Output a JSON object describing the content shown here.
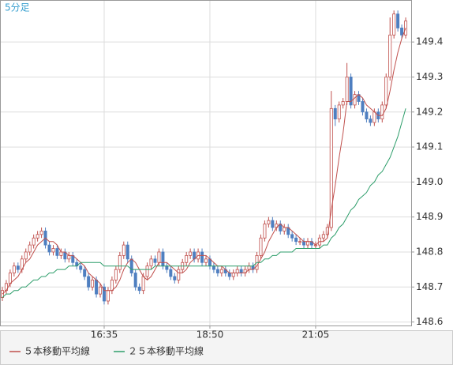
{
  "chart_data": {
    "type": "candlestick",
    "title": "5分足",
    "xlim": [
      -0.6,
      104.4
    ],
    "xticks": [
      {
        "value": 26,
        "label": "16:35"
      },
      {
        "value": 53,
        "label": "18:50"
      },
      {
        "value": 80,
        "label": "21:05"
      }
    ],
    "ylim": [
      148.59,
      149.52
    ],
    "yticks": [
      148.6,
      148.7,
      148.8,
      148.9,
      {
        "value": 149,
        "label": "149.0"
      },
      149.1,
      149.2,
      149.3,
      149.4
    ],
    "grid": true,
    "up_color": "#c0504d",
    "down_color": "#4f7fc0",
    "open": [
      148.67,
      148.69,
      148.71,
      148.74,
      148.76,
      148.75,
      148.78,
      148.8,
      148.82,
      148.84,
      148.85,
      148.86,
      148.82,
      148.8,
      148.81,
      148.79,
      148.8,
      148.78,
      148.79,
      148.77,
      148.76,
      148.75,
      148.73,
      148.7,
      148.72,
      148.68,
      148.7,
      148.66,
      148.69,
      148.72,
      148.75,
      148.79,
      148.82,
      148.78,
      148.74,
      148.7,
      148.69,
      148.73,
      148.76,
      148.78,
      148.77,
      148.8,
      148.76,
      148.75,
      148.73,
      148.72,
      148.75,
      148.77,
      148.79,
      148.8,
      148.78,
      148.8,
      148.77,
      148.78,
      148.76,
      148.75,
      148.74,
      148.75,
      148.74,
      148.73,
      148.74,
      148.75,
      148.74,
      148.75,
      148.76,
      148.75,
      148.79,
      148.84,
      148.88,
      148.89,
      148.87,
      148.88,
      148.86,
      148.87,
      148.85,
      148.84,
      148.83,
      148.83,
      148.82,
      148.83,
      148.82,
      148.82,
      148.84,
      148.85,
      148.87,
      149.21,
      149.18,
      149.22,
      149.23,
      149.3,
      149.22,
      149.25,
      149.23,
      149.2,
      149.18,
      149.17,
      149.2,
      149.18,
      149.22,
      149.3,
      149.42,
      149.48,
      149.44,
      149.42
    ],
    "high": [
      148.7,
      148.72,
      148.75,
      148.77,
      148.77,
      148.79,
      148.81,
      148.83,
      148.85,
      148.86,
      148.87,
      148.87,
      148.83,
      148.82,
      148.82,
      148.81,
      148.81,
      148.8,
      148.8,
      148.78,
      148.77,
      148.76,
      148.74,
      148.73,
      148.73,
      148.71,
      148.71,
      148.7,
      148.73,
      148.76,
      148.8,
      148.83,
      148.83,
      148.79,
      148.75,
      148.71,
      148.74,
      148.77,
      148.79,
      148.79,
      148.81,
      148.81,
      148.77,
      148.76,
      148.74,
      148.76,
      148.78,
      148.8,
      148.81,
      148.81,
      148.81,
      148.81,
      148.79,
      148.79,
      148.77,
      148.76,
      148.76,
      148.76,
      148.75,
      148.75,
      148.76,
      148.76,
      148.76,
      148.77,
      148.77,
      148.8,
      148.85,
      148.89,
      148.9,
      148.9,
      148.89,
      148.89,
      148.88,
      148.88,
      148.86,
      148.85,
      148.84,
      148.84,
      148.84,
      148.84,
      148.83,
      148.85,
      148.86,
      148.88,
      149.26,
      149.22,
      149.23,
      149.24,
      149.34,
      149.31,
      149.26,
      149.26,
      149.24,
      149.21,
      149.19,
      149.21,
      149.21,
      149.23,
      149.31,
      149.47,
      149.49,
      149.49,
      149.45,
      149.47
    ],
    "low": [
      148.66,
      148.68,
      148.7,
      148.73,
      148.74,
      148.74,
      148.77,
      148.79,
      148.81,
      148.83,
      148.84,
      148.81,
      148.79,
      148.79,
      148.78,
      148.78,
      148.77,
      148.77,
      148.76,
      148.75,
      148.74,
      148.72,
      148.69,
      148.69,
      148.67,
      148.67,
      148.65,
      148.65,
      148.68,
      148.71,
      148.74,
      148.78,
      148.77,
      148.73,
      148.69,
      148.68,
      148.68,
      148.72,
      148.75,
      148.76,
      148.76,
      148.75,
      148.74,
      148.72,
      148.71,
      148.71,
      148.74,
      148.76,
      148.78,
      148.77,
      148.77,
      148.76,
      148.76,
      148.75,
      148.74,
      148.73,
      148.73,
      148.73,
      148.72,
      148.72,
      148.73,
      148.73,
      148.73,
      148.74,
      148.74,
      148.74,
      148.78,
      148.83,
      148.87,
      148.86,
      148.86,
      148.85,
      148.85,
      148.84,
      148.83,
      148.82,
      148.82,
      148.81,
      148.81,
      148.81,
      148.81,
      148.81,
      148.83,
      148.84,
      148.86,
      149.16,
      149.17,
      149.21,
      149.22,
      149.21,
      149.21,
      149.22,
      149.19,
      149.17,
      149.16,
      149.16,
      149.17,
      149.17,
      149.21,
      149.29,
      149.41,
      149.43,
      149.41,
      149.41
    ],
    "close": [
      148.69,
      148.71,
      148.74,
      148.76,
      148.75,
      148.78,
      148.8,
      148.82,
      148.84,
      148.85,
      148.86,
      148.82,
      148.8,
      148.81,
      148.79,
      148.8,
      148.78,
      148.79,
      148.77,
      148.76,
      148.75,
      148.73,
      148.7,
      148.72,
      148.68,
      148.7,
      148.66,
      148.69,
      148.72,
      148.75,
      148.79,
      148.82,
      148.78,
      148.74,
      148.7,
      148.69,
      148.73,
      148.76,
      148.78,
      148.77,
      148.8,
      148.76,
      148.75,
      148.73,
      148.72,
      148.75,
      148.77,
      148.79,
      148.8,
      148.78,
      148.8,
      148.77,
      148.78,
      148.76,
      148.75,
      148.74,
      148.75,
      148.74,
      148.73,
      148.74,
      148.75,
      148.74,
      148.75,
      148.76,
      148.75,
      148.79,
      148.84,
      148.88,
      148.89,
      148.87,
      148.88,
      148.86,
      148.87,
      148.85,
      148.84,
      148.83,
      148.83,
      148.82,
      148.83,
      148.82,
      148.82,
      148.84,
      148.85,
      148.87,
      149.21,
      149.18,
      149.22,
      149.23,
      149.3,
      149.22,
      149.25,
      149.23,
      149.2,
      149.18,
      149.17,
      149.2,
      149.18,
      149.22,
      149.3,
      149.42,
      149.48,
      149.44,
      149.42,
      149.46
    ],
    "series": [
      {
        "name": "５本移動平均線",
        "color": "#c0504d",
        "values": [
          148.68,
          148.69,
          148.71,
          148.72,
          148.73,
          148.75,
          148.77,
          148.78,
          148.8,
          148.82,
          148.83,
          148.84,
          148.83,
          148.83,
          148.82,
          148.8,
          148.8,
          148.79,
          148.79,
          148.78,
          148.77,
          148.76,
          148.74,
          148.73,
          148.72,
          148.71,
          148.69,
          148.69,
          148.69,
          148.7,
          148.72,
          148.75,
          148.77,
          148.78,
          148.77,
          148.75,
          148.73,
          148.72,
          148.73,
          148.75,
          148.77,
          148.77,
          148.77,
          148.76,
          148.75,
          148.74,
          148.74,
          148.75,
          148.77,
          148.78,
          148.79,
          148.79,
          148.79,
          148.78,
          148.77,
          148.76,
          148.76,
          148.75,
          148.74,
          148.74,
          148.74,
          148.74,
          148.74,
          148.75,
          148.75,
          148.76,
          148.78,
          148.8,
          148.83,
          148.85,
          148.87,
          148.88,
          148.87,
          148.87,
          148.86,
          148.85,
          148.84,
          148.83,
          148.83,
          148.83,
          148.82,
          148.83,
          148.83,
          148.84,
          148.92,
          148.99,
          149.07,
          149.14,
          149.23,
          149.23,
          149.24,
          149.25,
          149.24,
          149.22,
          149.21,
          149.2,
          149.19,
          149.19,
          149.21,
          149.26,
          149.32,
          149.37,
          149.41,
          149.44
        ]
      },
      {
        "name": "２５本移動平均線",
        "color": "#2e9e6b",
        "values": [
          148.67,
          148.68,
          148.68,
          148.69,
          148.69,
          148.7,
          148.7,
          148.71,
          148.72,
          148.72,
          148.73,
          148.73,
          148.74,
          148.74,
          148.75,
          148.75,
          148.75,
          148.76,
          148.76,
          148.76,
          148.77,
          148.77,
          148.77,
          148.77,
          148.77,
          148.77,
          148.76,
          148.76,
          148.76,
          148.76,
          148.76,
          148.76,
          148.76,
          148.75,
          148.75,
          148.75,
          148.75,
          148.75,
          148.75,
          148.76,
          148.76,
          148.76,
          148.76,
          148.76,
          148.76,
          148.76,
          148.76,
          148.76,
          148.76,
          148.76,
          148.76,
          148.76,
          148.76,
          148.76,
          148.76,
          148.76,
          148.76,
          148.76,
          148.76,
          148.76,
          148.76,
          148.76,
          148.76,
          148.76,
          148.76,
          148.77,
          148.77,
          148.78,
          148.78,
          148.79,
          148.79,
          148.8,
          148.8,
          148.8,
          148.8,
          148.81,
          148.81,
          148.81,
          148.81,
          148.81,
          148.81,
          148.81,
          148.82,
          148.82,
          148.84,
          148.85,
          148.87,
          148.88,
          148.9,
          148.92,
          148.93,
          148.95,
          148.96,
          148.97,
          148.99,
          149.0,
          149.02,
          149.03,
          149.05,
          149.07,
          149.1,
          149.13,
          149.17,
          149.21
        ]
      }
    ]
  }
}
